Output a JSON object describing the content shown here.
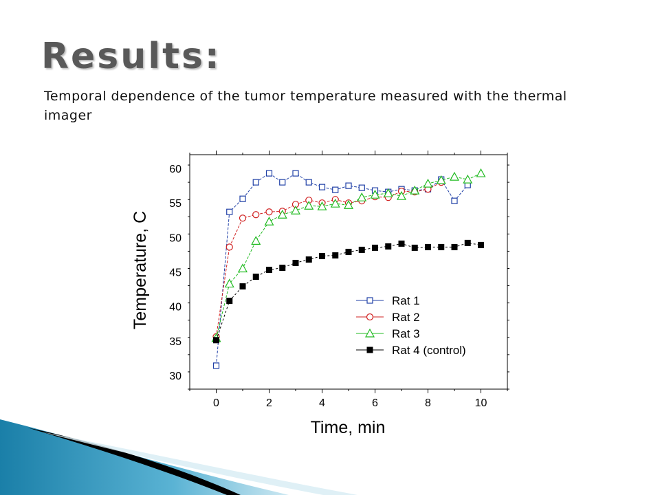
{
  "slide": {
    "title": "Results:",
    "subtitle": "Temporal dependence of the tumor temperature measured with the thermal imager"
  },
  "chart_data": {
    "type": "scatter",
    "xlabel": "Time, min",
    "ylabel": "Temperature, C",
    "xlim": [
      -1,
      11
    ],
    "ylim": [
      28,
      62
    ],
    "xticks": [
      0,
      2,
      4,
      6,
      8,
      10
    ],
    "yticks": [
      30,
      35,
      40,
      45,
      50,
      55,
      60
    ],
    "grid": false,
    "legend_position": "bottom-right",
    "series": [
      {
        "name": "Rat 1",
        "color": "#1f3fa6",
        "marker": "open-square",
        "x": [
          0,
          0.5,
          1,
          1.5,
          2,
          2.5,
          3,
          3.5,
          4,
          4.5,
          5,
          5.5,
          6,
          6.5,
          7,
          7.5,
          8,
          8.5,
          9,
          9.5
        ],
        "y": [
          31.4,
          53.7,
          55.6,
          58.0,
          59.3,
          58.0,
          59.3,
          58.0,
          57.3,
          56.9,
          57.5,
          57.2,
          56.8,
          56.6,
          57.0,
          56.8,
          57.0,
          58.4,
          55.3,
          57.6
        ]
      },
      {
        "name": "Rat 2",
        "color": "#d02020",
        "marker": "open-circle",
        "x": [
          0,
          0.5,
          1,
          1.5,
          2,
          2.5,
          3,
          3.5,
          4,
          4.5,
          5,
          5.5,
          6,
          6.5,
          7,
          7.5,
          8,
          8.5
        ],
        "y": [
          35.6,
          48.6,
          52.8,
          53.3,
          53.7,
          53.8,
          54.8,
          55.4,
          55.0,
          55.5,
          55.0,
          55.3,
          55.9,
          55.8,
          56.7,
          56.6,
          57.0,
          58.0
        ]
      },
      {
        "name": "Rat 3",
        "color": "#22bb22",
        "marker": "open-triangle",
        "x": [
          0,
          0.5,
          1,
          1.5,
          2,
          2.5,
          3,
          3.5,
          4,
          4.5,
          5,
          5.5,
          6,
          6.5,
          7,
          7.5,
          8,
          8.5,
          9,
          9.5,
          10
        ],
        "y": [
          35.4,
          43.3,
          45.5,
          49.5,
          52.3,
          53.3,
          53.9,
          54.6,
          54.5,
          54.9,
          54.7,
          55.8,
          56.2,
          56.4,
          56.0,
          56.8,
          57.8,
          58.3,
          58.8,
          58.4,
          59.3
        ]
      },
      {
        "name": "Rat 4 (control)",
        "color": "#000000",
        "marker": "filled-square",
        "x": [
          0,
          0.5,
          1,
          1.5,
          2,
          2.5,
          3,
          3.5,
          4,
          4.5,
          5,
          5.5,
          6,
          6.5,
          7,
          7.5,
          8,
          8.5,
          9,
          9.5,
          10
        ],
        "y": [
          35.1,
          40.8,
          42.9,
          44.3,
          45.3,
          45.6,
          46.3,
          46.8,
          47.3,
          47.4,
          47.9,
          48.2,
          48.5,
          48.7,
          49.1,
          48.5,
          48.6,
          48.6,
          48.6,
          49.2,
          48.9
        ]
      }
    ]
  }
}
